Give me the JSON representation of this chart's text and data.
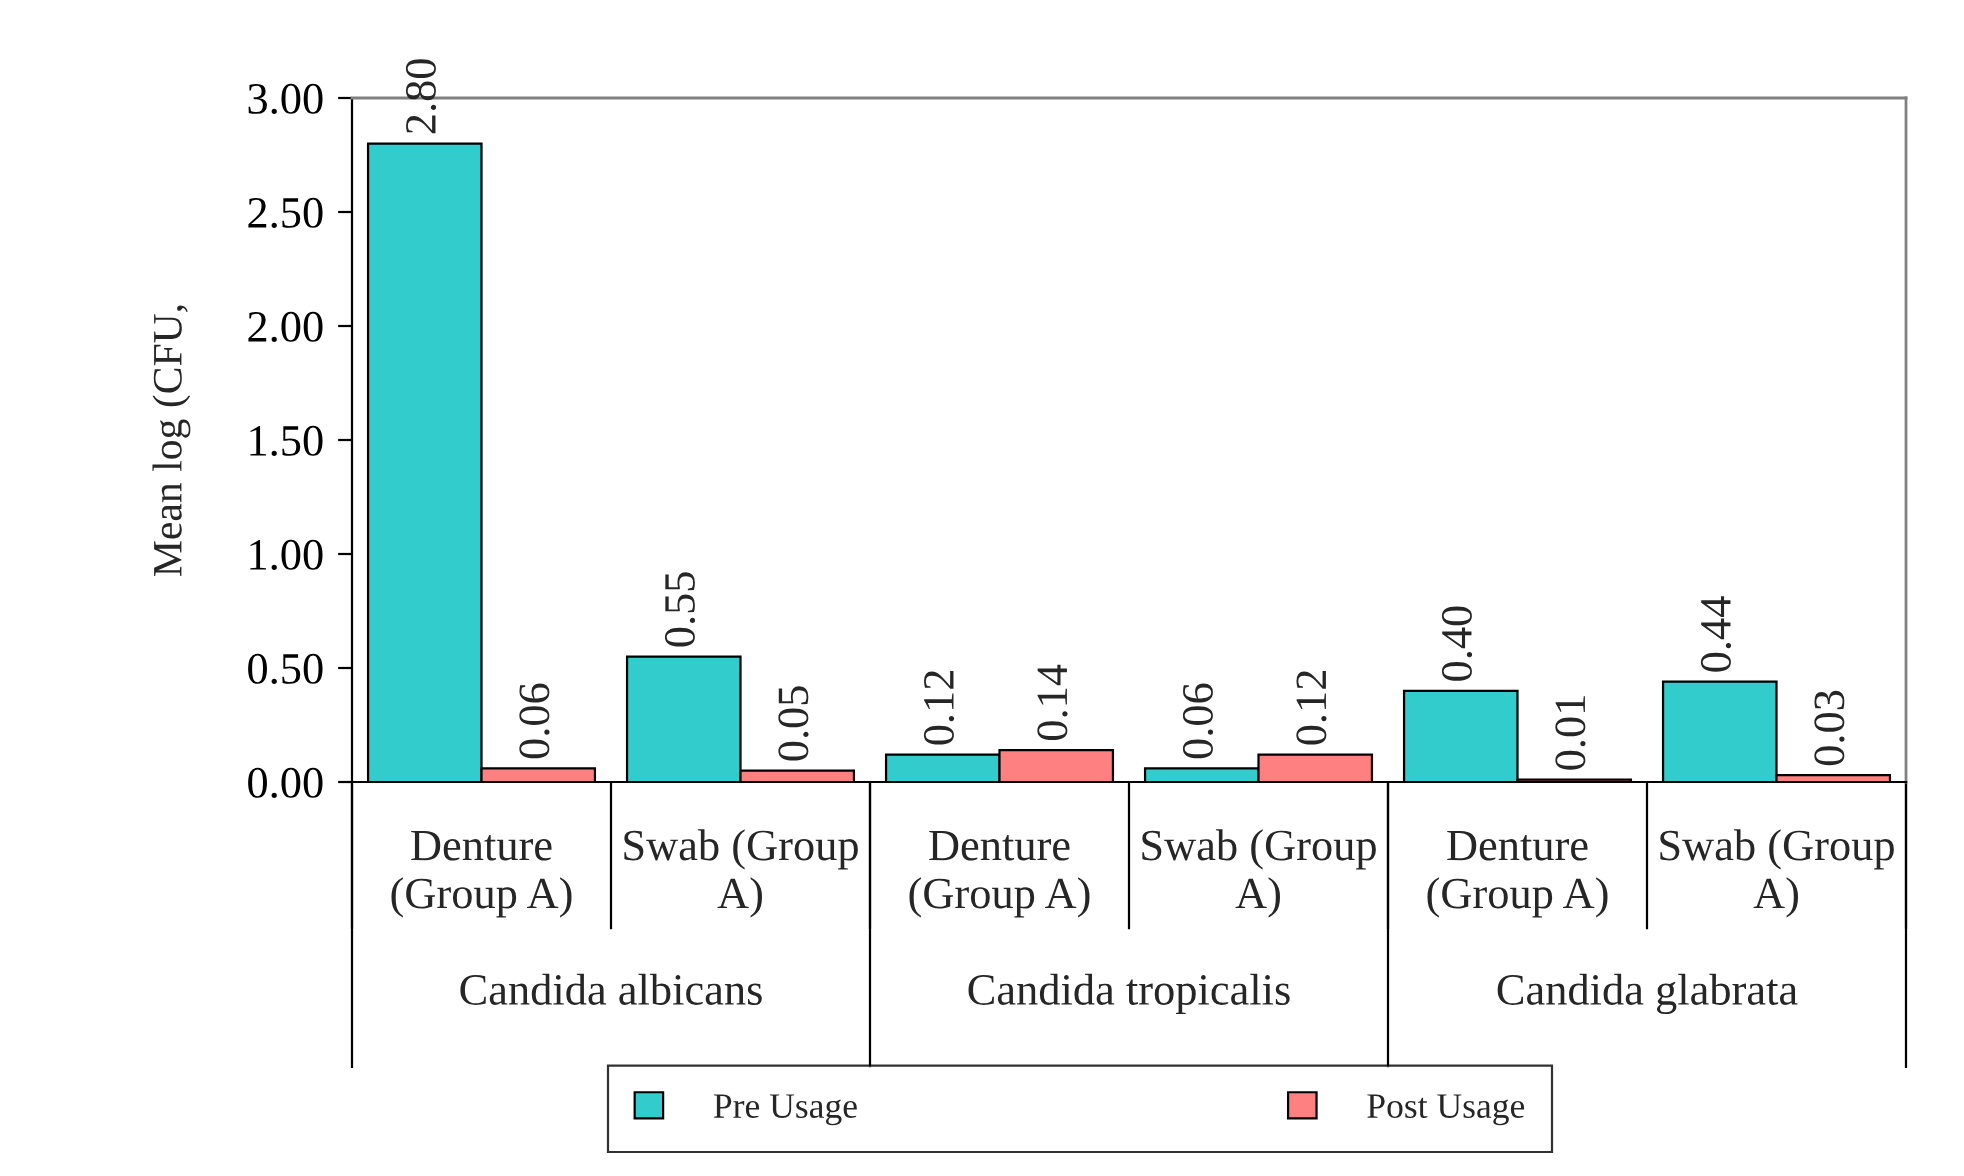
{
  "chart_data": {
    "type": "bar",
    "ylabel": "Mean log (CFU,",
    "categories": [
      "Denture\n(Group A)",
      "Swab (Group\nA)",
      "Denture\n(Group A)",
      "Swab (Group\nA)",
      "Denture\n(Group A)",
      "Swab (Group\nA)"
    ],
    "series": [
      {
        "name": "Pre Usage",
        "color": "#33cccc",
        "values": [
          2.8,
          0.55,
          0.12,
          0.06,
          0.4,
          0.44
        ],
        "value_labels": [
          "2.80",
          "0.55",
          "0.12",
          "0.06",
          "0.40",
          "0.44"
        ]
      },
      {
        "name": "Post Usage",
        "color": "#ff8080",
        "values": [
          0.06,
          0.05,
          0.14,
          0.12,
          0.01,
          0.03
        ],
        "value_labels": [
          "0.06",
          "0.05",
          "0.14",
          "0.12",
          "0.01",
          "0.03"
        ]
      }
    ],
    "ylim": [
      0,
      3
    ],
    "yticks": [
      {
        "value": 0,
        "label": "0.00"
      },
      {
        "value": 0.5,
        "label": "0.50"
      },
      {
        "value": 1,
        "label": "1.00"
      },
      {
        "value": 1.5,
        "label": "1.50"
      },
      {
        "value": 2,
        "label": "2.00"
      },
      {
        "value": 2.5,
        "label": "2.50"
      },
      {
        "value": 3,
        "label": "3.00"
      }
    ],
    "grid": false,
    "legend": "bottom",
    "annotations": [
      "Candida albicans",
      "Candida tropicalis",
      "Candida glabrata"
    ]
  }
}
